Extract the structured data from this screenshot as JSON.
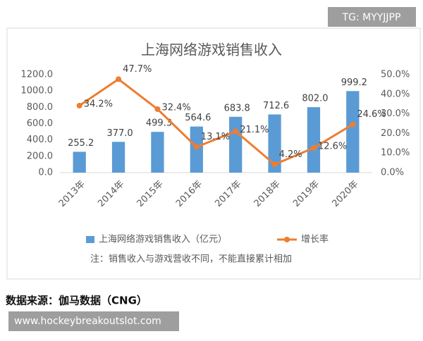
{
  "watermark": "TG: MYYJJPP",
  "source": "数据来源：伽马数据（CNG）",
  "footer": "www.hockeybreakoutslot.com",
  "chart_data": {
    "type": "bar",
    "title": "上海网络游戏销售收入",
    "note": "注：销售收入与游戏营收不同，不能直接累计相加",
    "categories": [
      "2013年",
      "2014年",
      "2015年",
      "2016年",
      "2017年",
      "2018年",
      "2019年",
      "2020年"
    ],
    "series": [
      {
        "name": "上海网络游戏销售收入（亿元）",
        "type": "bar",
        "color": "#5b9bd5",
        "values": [
          255.2,
          377,
          499.3,
          564.6,
          683.8,
          712.6,
          802,
          999.2
        ],
        "value_labels": [
          "255.2",
          "377.0",
          "499.3",
          "564.6",
          "683.8",
          "712.6",
          "802.0",
          "999.2"
        ]
      },
      {
        "name": "增长率",
        "type": "line",
        "axis": "y2",
        "color": "#ed7d31",
        "values": [
          34.2,
          47.7,
          32.4,
          13.1,
          21.1,
          4.2,
          12.6,
          24.6
        ],
        "value_labels": [
          "34.2%",
          "47.7%",
          "32.4%",
          "13.1%",
          "21.1%",
          "4.2%",
          "12.6%",
          "24.6%"
        ]
      }
    ],
    "ylim": [
      0,
      1200
    ],
    "yticks": [
      {
        "value": 0,
        "label": "0.0"
      },
      {
        "value": 200,
        "label": "200.0"
      },
      {
        "value": 400,
        "label": "400.0"
      },
      {
        "value": 600,
        "label": "600.0"
      },
      {
        "value": 800,
        "label": "800.0"
      },
      {
        "value": 1000,
        "label": "1000.0"
      },
      {
        "value": 1200,
        "label": "1200.0"
      }
    ],
    "y2lim": [
      0,
      50
    ],
    "y2ticks": [
      {
        "value": 0,
        "label": "0.0%"
      },
      {
        "value": 10,
        "label": "10.0%"
      },
      {
        "value": 20,
        "label": "20.0%"
      },
      {
        "value": 30,
        "label": "30.0%"
      },
      {
        "value": 40,
        "label": "40.0%"
      },
      {
        "value": 50,
        "label": "50.0%"
      }
    ],
    "grid": false,
    "legend": "bottom"
  }
}
